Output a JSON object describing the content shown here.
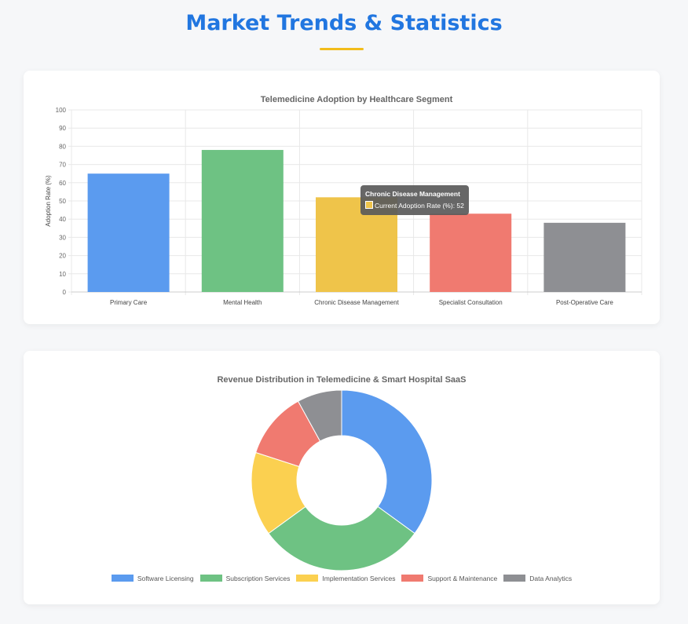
{
  "header": {
    "title": "Market Trends & Statistics"
  },
  "chart_data": [
    {
      "type": "bar",
      "title": "Telemedicine Adoption by Healthcare Segment",
      "xlabel": "",
      "ylabel": "Adoption Rate (%)",
      "ylim": [
        0,
        100
      ],
      "yticks": [
        0,
        10,
        20,
        30,
        40,
        50,
        60,
        70,
        80,
        90,
        100
      ],
      "grid": true,
      "categories": [
        "Primary Care",
        "Mental Health",
        "Chronic Disease Management",
        "Specialist Consultation",
        "Post-Operative Care"
      ],
      "series": [
        {
          "name": "Current Adoption Rate (%)",
          "values": [
            65,
            78,
            52,
            43,
            38
          ]
        }
      ],
      "colors": [
        "#5b9bef",
        "#6ec283",
        "#efc44a",
        "#f07a70",
        "#8e8f93"
      ],
      "tooltip": {
        "title": "Chronic Disease Management",
        "label": "Current Adoption Rate (%): 52"
      }
    },
    {
      "type": "pie",
      "donut": true,
      "title": "Revenue Distribution in Telemedicine & Smart Hospital SaaS",
      "categories": [
        "Software Licensing",
        "Subscription Services",
        "Implementation Services",
        "Support & Maintenance",
        "Data Analytics"
      ],
      "values": [
        35,
        30,
        15,
        12,
        8
      ],
      "colors": [
        "#5b9bef",
        "#6ec283",
        "#fbd050",
        "#f07a70",
        "#8e8f93"
      ],
      "legend": "bottom"
    }
  ]
}
